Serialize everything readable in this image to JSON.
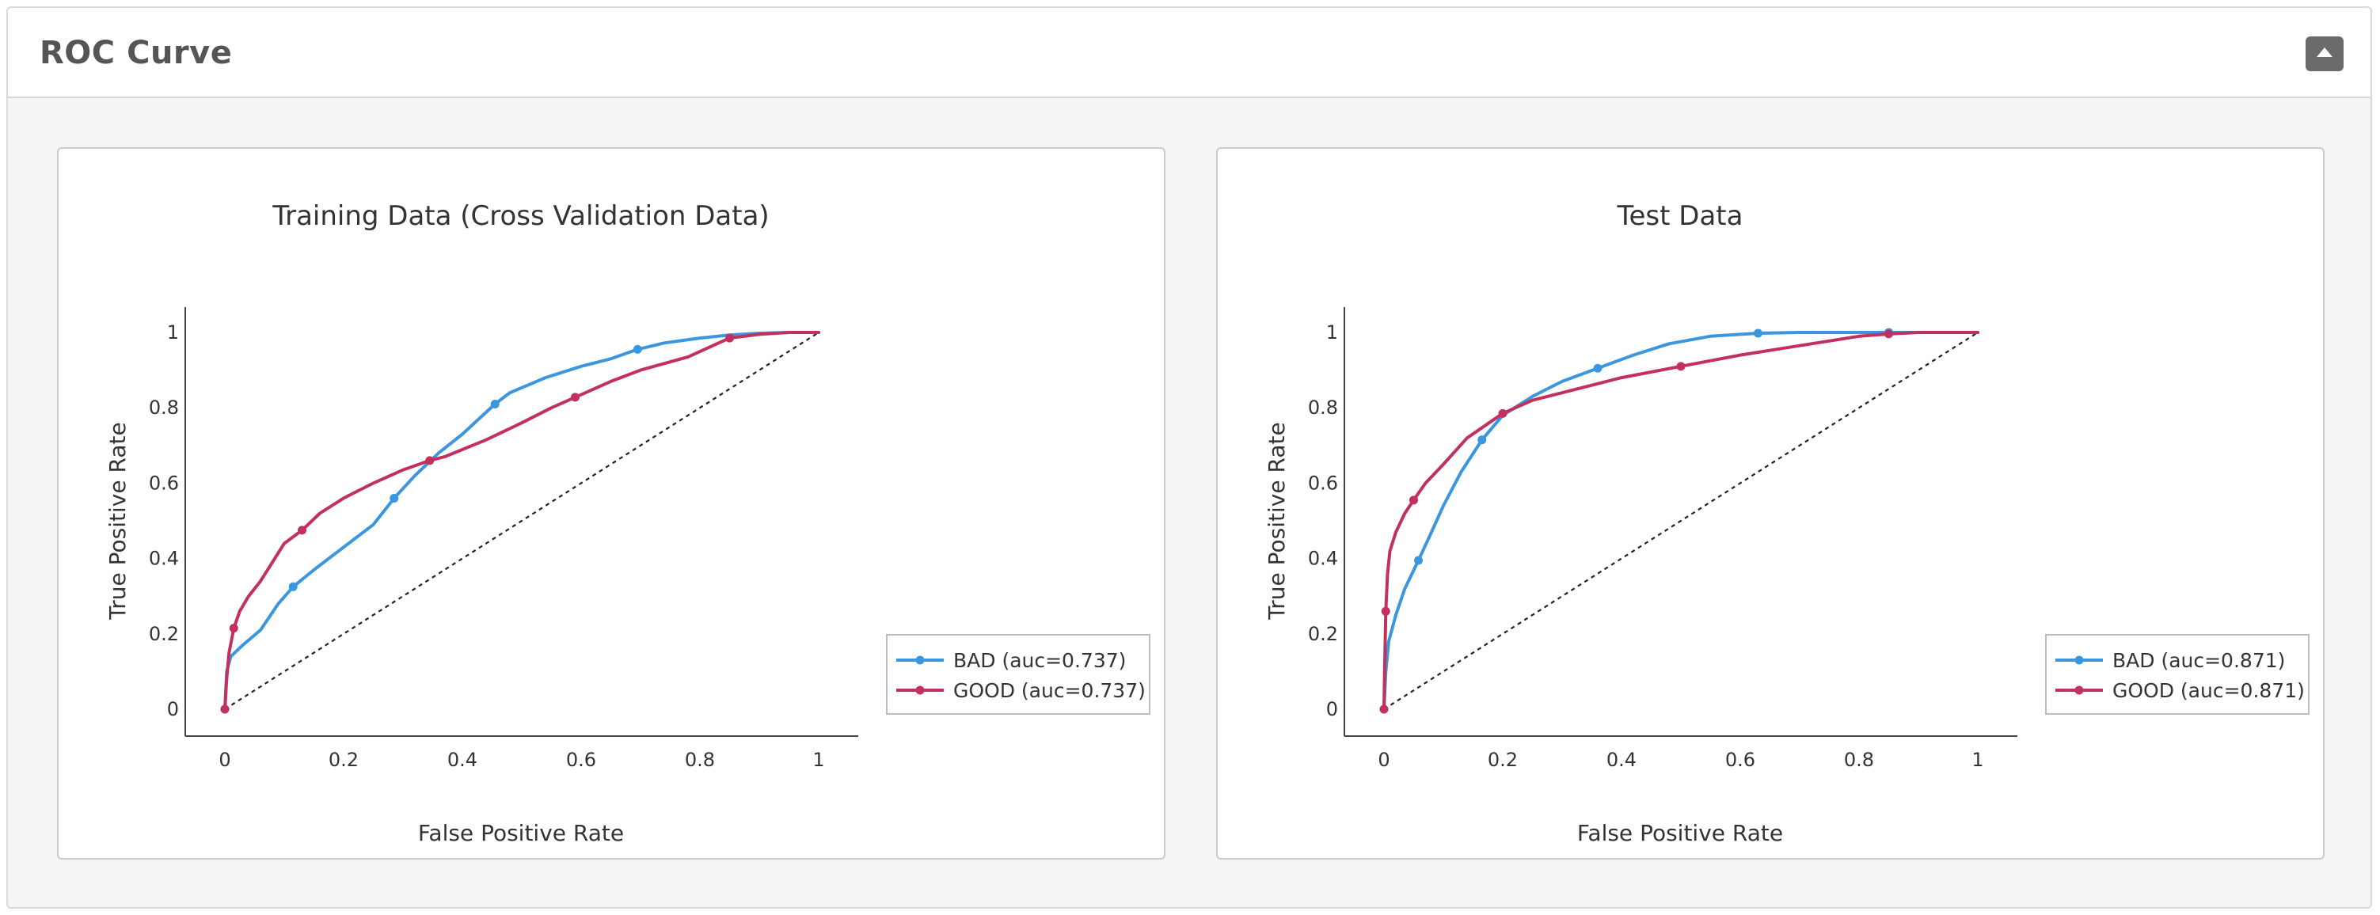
{
  "panel": {
    "title": "ROC Curve",
    "collapse_icon": "caret-up-icon"
  },
  "colors": {
    "bad": "#3a97df",
    "good": "#c2305e",
    "diagonal": "#222222"
  },
  "chart_data": [
    {
      "type": "line",
      "title": "Training Data (Cross Validation Data)",
      "xlabel": "False Positive Rate",
      "ylabel": "True Positive Rate",
      "xlim": [
        0,
        1
      ],
      "ylim": [
        0,
        1
      ],
      "xticks": [
        "0",
        "0.2",
        "0.4",
        "0.6",
        "0.8",
        "1"
      ],
      "yticks": [
        "0",
        "0.2",
        "0.4",
        "0.6",
        "0.8",
        "1"
      ],
      "grid": false,
      "legend": "bottom-right",
      "diagonal": true,
      "series": [
        {
          "name": "BAD (auc=0.737)",
          "color": "#3a97df",
          "x": [
            0,
            0.003,
            0.01,
            0.03,
            0.06,
            0.09,
            0.115,
            0.15,
            0.2,
            0.25,
            0.285,
            0.32,
            0.36,
            0.4,
            0.455,
            0.48,
            0.54,
            0.6,
            0.65,
            0.695,
            0.74,
            0.8,
            0.85,
            0.9,
            0.95,
            1
          ],
          "y": [
            0,
            0.1,
            0.14,
            0.17,
            0.21,
            0.28,
            0.325,
            0.37,
            0.43,
            0.49,
            0.56,
            0.62,
            0.68,
            0.73,
            0.81,
            0.84,
            0.88,
            0.91,
            0.93,
            0.955,
            0.972,
            0.985,
            0.993,
            0.998,
            1,
            1
          ],
          "markers": [
            [
              0,
              0
            ],
            [
              0.115,
              0.325
            ],
            [
              0.285,
              0.56
            ],
            [
              0.455,
              0.81
            ],
            [
              0.695,
              0.955
            ]
          ]
        },
        {
          "name": "GOOD (auc=0.737)",
          "color": "#c2305e",
          "x": [
            0,
            0.003,
            0.007,
            0.015,
            0.025,
            0.04,
            0.06,
            0.08,
            0.1,
            0.13,
            0.16,
            0.2,
            0.25,
            0.3,
            0.345,
            0.37,
            0.44,
            0.5,
            0.55,
            0.59,
            0.65,
            0.7,
            0.78,
            0.85,
            0.9,
            0.95,
            1
          ],
          "y": [
            0,
            0.08,
            0.15,
            0.215,
            0.26,
            0.3,
            0.34,
            0.39,
            0.44,
            0.475,
            0.52,
            0.56,
            0.6,
            0.635,
            0.66,
            0.67,
            0.715,
            0.76,
            0.8,
            0.828,
            0.87,
            0.9,
            0.935,
            0.985,
            0.995,
            1,
            1
          ],
          "markers": [
            [
              0,
              0
            ],
            [
              0.015,
              0.215
            ],
            [
              0.13,
              0.475
            ],
            [
              0.345,
              0.66
            ],
            [
              0.59,
              0.828
            ],
            [
              0.85,
              0.985
            ]
          ]
        }
      ]
    },
    {
      "type": "line",
      "title": "Test Data",
      "xlabel": "False Positive Rate",
      "ylabel": "True Positive Rate",
      "xlim": [
        0,
        1
      ],
      "ylim": [
        0,
        1
      ],
      "xticks": [
        "0",
        "0.2",
        "0.4",
        "0.6",
        "0.8",
        "1"
      ],
      "yticks": [
        "0",
        "0.2",
        "0.4",
        "0.6",
        "0.8",
        "1"
      ],
      "grid": false,
      "legend": "bottom-right",
      "diagonal": true,
      "series": [
        {
          "name": "BAD (auc=0.871)",
          "color": "#3a97df",
          "x": [
            0,
            0.003,
            0.008,
            0.02,
            0.035,
            0.058,
            0.08,
            0.1,
            0.13,
            0.165,
            0.2,
            0.25,
            0.3,
            0.36,
            0.42,
            0.48,
            0.55,
            0.63,
            0.7,
            0.85,
            1
          ],
          "y": [
            0,
            0.1,
            0.18,
            0.25,
            0.32,
            0.395,
            0.47,
            0.54,
            0.63,
            0.715,
            0.78,
            0.83,
            0.87,
            0.905,
            0.94,
            0.97,
            0.99,
            0.998,
            1,
            1,
            1
          ],
          "markers": [
            [
              0,
              0
            ],
            [
              0.058,
              0.395
            ],
            [
              0.165,
              0.715
            ],
            [
              0.36,
              0.905
            ],
            [
              0.63,
              0.998
            ],
            [
              0.85,
              1
            ]
          ]
        },
        {
          "name": "GOOD (auc=0.871)",
          "color": "#c2305e",
          "x": [
            0,
            0.001,
            0.003,
            0.006,
            0.01,
            0.02,
            0.035,
            0.05,
            0.07,
            0.1,
            0.14,
            0.2,
            0.25,
            0.3,
            0.4,
            0.5,
            0.6,
            0.7,
            0.8,
            0.85,
            0.9,
            1
          ],
          "y": [
            0,
            0.1,
            0.26,
            0.36,
            0.42,
            0.47,
            0.52,
            0.555,
            0.6,
            0.65,
            0.72,
            0.785,
            0.82,
            0.84,
            0.88,
            0.91,
            0.94,
            0.965,
            0.99,
            0.996,
            1,
            1
          ],
          "markers": [
            [
              0,
              0
            ],
            [
              0.003,
              0.26
            ],
            [
              0.05,
              0.555
            ],
            [
              0.2,
              0.785
            ],
            [
              0.5,
              0.91
            ],
            [
              0.85,
              0.996
            ]
          ]
        }
      ]
    }
  ]
}
